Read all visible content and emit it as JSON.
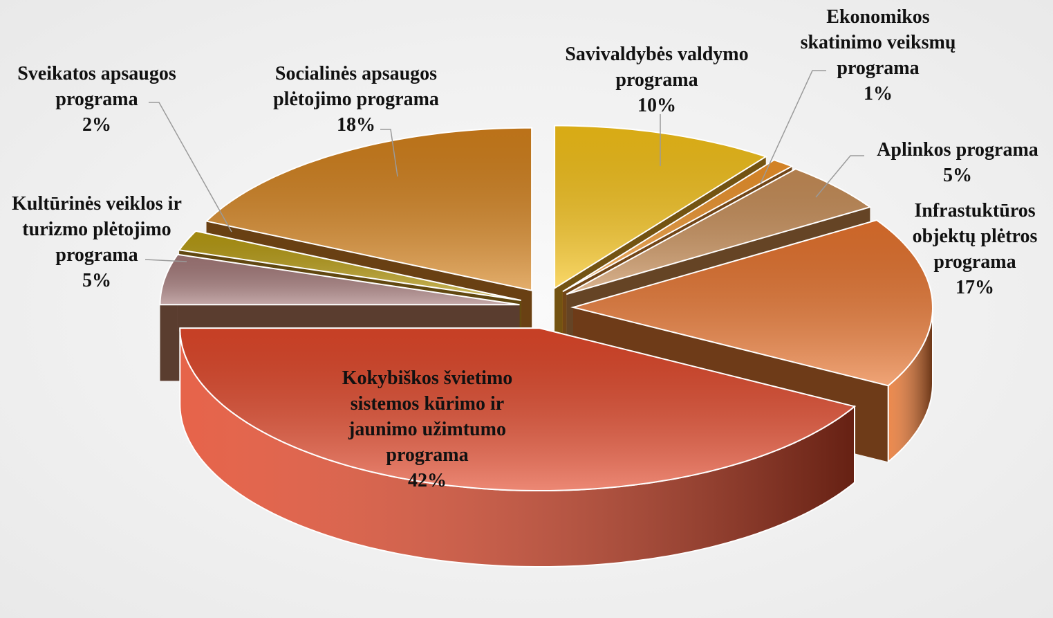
{
  "chart_data": {
    "type": "pie3d",
    "categories": [
      "Savivaldybės valdymo programa",
      "Ekonomikos skatinimo veiksmų programa",
      "Aplinkos programa",
      "Infrastuktūros objektų plėtros programa",
      "Kokybiškos švietimo sistemos kūrimo ir jaunimo užimtumo programa",
      "Kultūrinės veiklos ir turizmo plėtojimo programa",
      "Sveikatos apsaugos programa",
      "Socialinės apsaugos plėtojimo programa"
    ],
    "values": [
      10,
      1,
      5,
      17,
      42,
      5,
      2,
      18
    ],
    "value_labels": [
      "10%",
      "1%",
      "5%",
      "17%",
      "42%",
      "5%",
      "2%",
      "18%"
    ],
    "colors": [
      "#f7c318",
      "#f0942a",
      "#c98f58",
      "#e8742e",
      "#e2482a",
      "#a57a7a",
      "#b89c12",
      "#d5821c"
    ]
  }
}
